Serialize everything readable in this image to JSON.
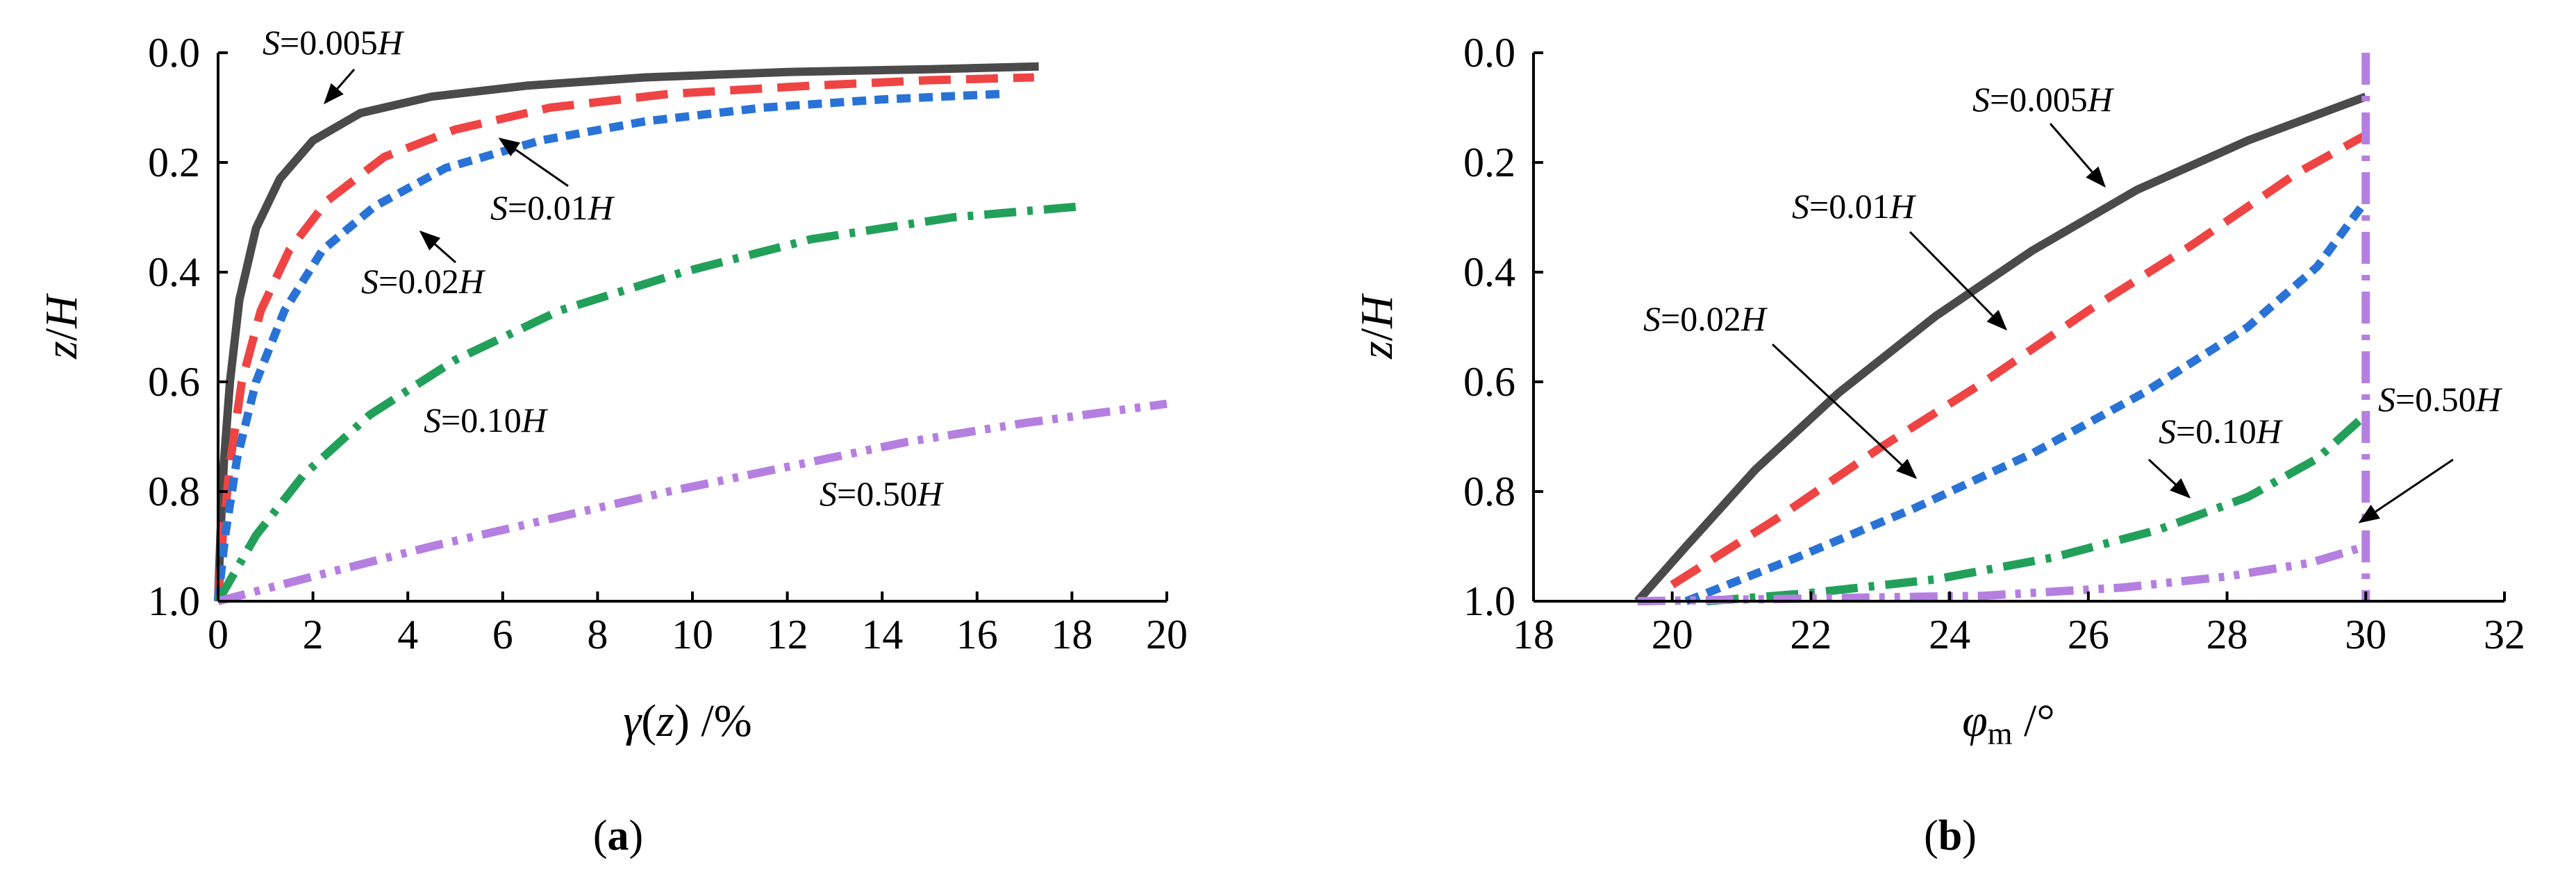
{
  "chart_data": [
    {
      "panel": "(a)",
      "type": "line",
      "xlabel": "γ(z) /%",
      "ylabel": "z/H",
      "xlim": [
        0,
        20
      ],
      "ylim": [
        1.0,
        0.0
      ],
      "xticks": [
        "0",
        "2",
        "4",
        "6",
        "8",
        "10",
        "12",
        "14",
        "16",
        "18",
        "20"
      ],
      "yticks": [
        "0.0",
        "0.2",
        "0.4",
        "0.6",
        "0.8",
        "1.0"
      ],
      "series": [
        {
          "name": "S=0.005H",
          "color": "#4a4a4a",
          "dash": "solid",
          "x": [
            0,
            0.05,
            0.12,
            0.25,
            0.45,
            0.8,
            1.3,
            2.0,
            3.0,
            4.5,
            6.5,
            9.0,
            12.0,
            15.0,
            17.3
          ],
          "y": [
            1.0,
            0.88,
            0.75,
            0.6,
            0.45,
            0.32,
            0.23,
            0.16,
            0.11,
            0.08,
            0.06,
            0.045,
            0.035,
            0.03,
            0.025
          ]
        },
        {
          "name": "S=0.01H",
          "color": "#ef4444",
          "dash": "long-dash",
          "x": [
            0,
            0.1,
            0.25,
            0.5,
            0.9,
            1.5,
            2.3,
            3.5,
            5.0,
            7.0,
            9.5,
            12.5,
            15.0,
            17.2
          ],
          "y": [
            1.0,
            0.88,
            0.75,
            0.6,
            0.47,
            0.36,
            0.27,
            0.19,
            0.14,
            0.1,
            0.075,
            0.06,
            0.05,
            0.045
          ]
        },
        {
          "name": "S=0.02H",
          "color": "#2a73d6",
          "dash": "short-dash",
          "x": [
            0,
            0.15,
            0.4,
            0.8,
            1.4,
            2.2,
            3.3,
            4.8,
            6.8,
            9.0,
            11.5,
            14.0,
            16.5
          ],
          "y": [
            1.0,
            0.88,
            0.74,
            0.6,
            0.47,
            0.36,
            0.28,
            0.21,
            0.16,
            0.125,
            0.1,
            0.085,
            0.075
          ]
        },
        {
          "name": "S=0.10H",
          "color": "#22a05a",
          "dash": "dash-dot",
          "x": [
            0,
            0.8,
            1.8,
            3.2,
            5.0,
            7.2,
            9.8,
            12.5,
            15.5,
            18.2
          ],
          "y": [
            1.0,
            0.88,
            0.77,
            0.66,
            0.56,
            0.47,
            0.4,
            0.34,
            0.3,
            0.28
          ]
        },
        {
          "name": "S=0.50H",
          "color": "#b57fe0",
          "dash": "dash-dot-dot",
          "x": [
            0,
            2.0,
            4.5,
            7.0,
            9.5,
            12.0,
            14.5,
            17.0,
            20.0
          ],
          "y": [
            1.0,
            0.955,
            0.9,
            0.85,
            0.8,
            0.755,
            0.71,
            0.675,
            0.64
          ]
        }
      ],
      "annotations": [
        "S=0.005H",
        "S=0.01H",
        "S=0.02H",
        "S=0.10H",
        "S=0.50H"
      ]
    },
    {
      "panel": "(b)",
      "type": "line",
      "xlabel": "φm /°",
      "ylabel": "z/H",
      "xlim": [
        18,
        32
      ],
      "ylim": [
        1.0,
        0.0
      ],
      "xticks": [
        "18",
        "20",
        "22",
        "24",
        "26",
        "28",
        "30",
        "32"
      ],
      "yticks": [
        "0.0",
        "0.2",
        "0.4",
        "0.6",
        "0.8",
        "1.0"
      ],
      "series": [
        {
          "name": "S=0.005H",
          "color": "#4a4a4a",
          "dash": "solid",
          "x": [
            19.5,
            20.2,
            21.2,
            22.4,
            23.8,
            25.2,
            26.7,
            28.3,
            30.0
          ],
          "y": [
            1.0,
            0.9,
            0.76,
            0.62,
            0.48,
            0.36,
            0.25,
            0.16,
            0.08
          ]
        },
        {
          "name": "S=0.01H",
          "color": "#ef4444",
          "dash": "long-dash",
          "x": [
            20.0,
            21.5,
            23.0,
            24.5,
            26.0,
            27.5,
            29.0,
            30.0
          ],
          "y": [
            0.97,
            0.85,
            0.72,
            0.6,
            0.47,
            0.35,
            0.22,
            0.15
          ]
        },
        {
          "name": "S=0.02H",
          "color": "#2a73d6",
          "dash": "short-dash",
          "x": [
            20.2,
            21.8,
            23.5,
            25.2,
            26.8,
            28.3,
            29.3,
            30.0
          ],
          "y": [
            1.0,
            0.92,
            0.83,
            0.73,
            0.62,
            0.5,
            0.39,
            0.27
          ]
        },
        {
          "name": "S=0.10H",
          "color": "#22a05a",
          "dash": "dash-dot",
          "x": [
            20.5,
            22.0,
            23.8,
            25.5,
            27.0,
            28.3,
            29.3,
            30.0
          ],
          "y": [
            1.0,
            0.985,
            0.96,
            0.92,
            0.87,
            0.81,
            0.74,
            0.66
          ]
        },
        {
          "name": "S=0.50H",
          "color": "#b57fe0",
          "dash": "dash-dot-dot",
          "x": [
            19.5,
            22.0,
            24.5,
            26.5,
            28.0,
            29.2,
            30.0
          ],
          "y": [
            1.0,
            0.995,
            0.99,
            0.975,
            0.955,
            0.93,
            0.9
          ]
        },
        {
          "name": "vertical line at 30",
          "color": "#b57fe0",
          "dash": "dash-dot",
          "x": [
            30,
            30
          ],
          "y": [
            0.0,
            1.0
          ]
        }
      ],
      "annotations": [
        "S=0.005H",
        "S=0.01H",
        "S=0.02H",
        "S=0.10H",
        "S=0.50H"
      ]
    }
  ],
  "panel_labels": {
    "a": "(a)",
    "b": "(b)"
  }
}
